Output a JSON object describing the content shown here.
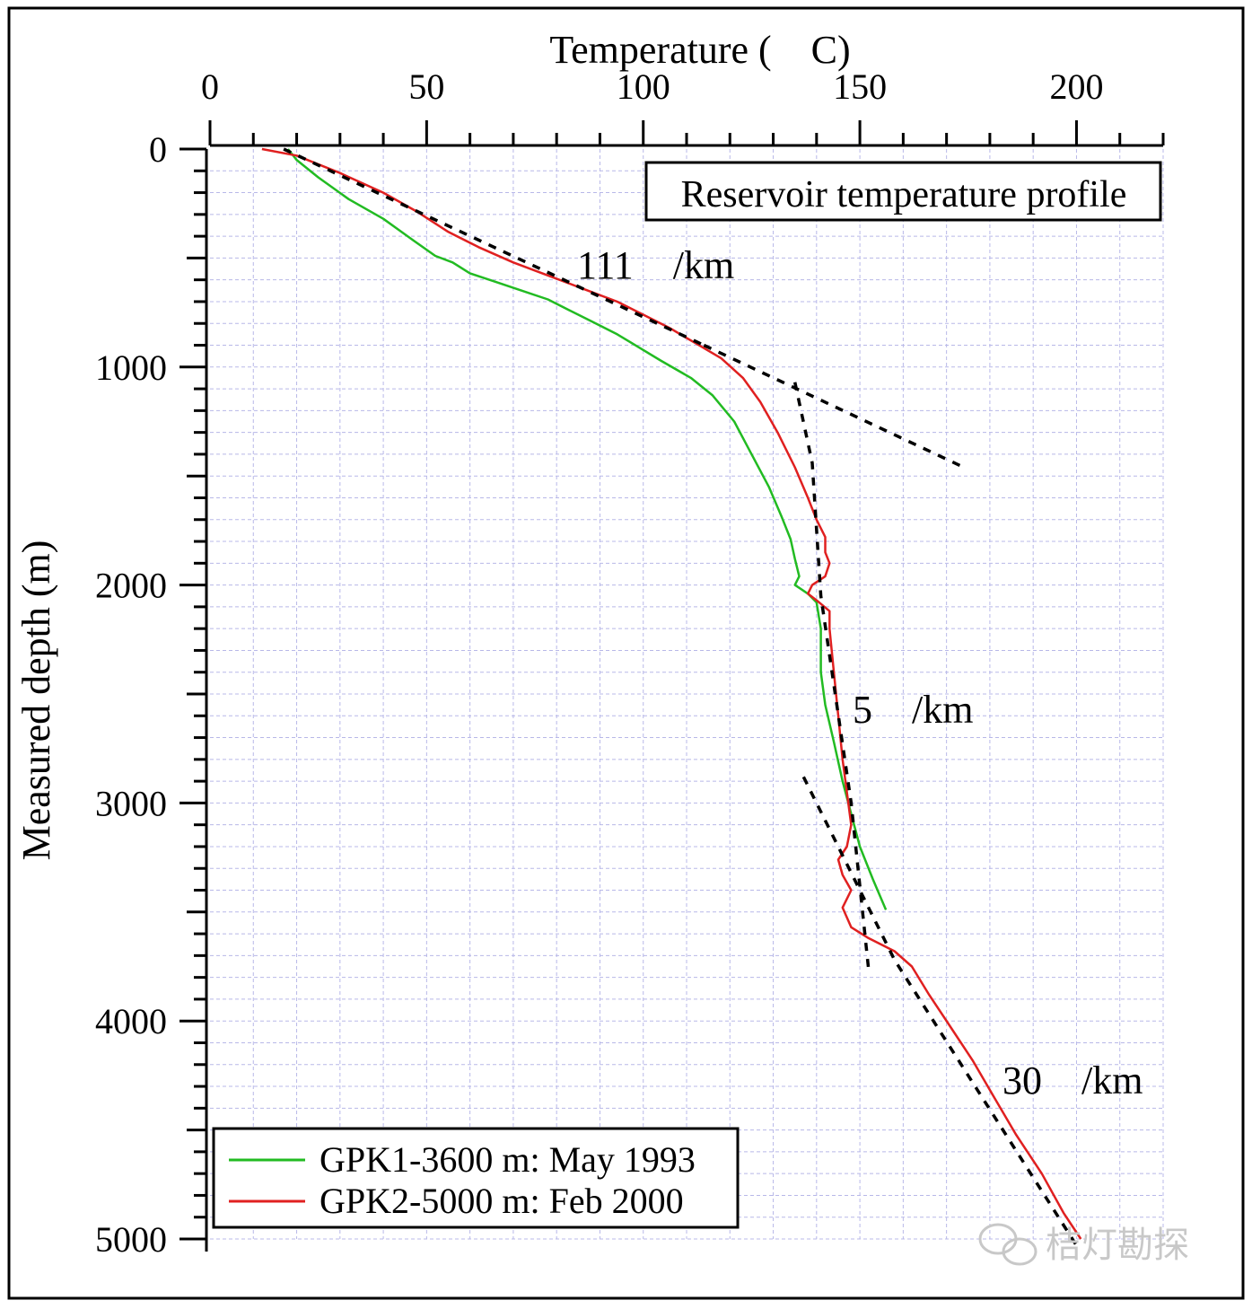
{
  "chart_data": {
    "type": "line",
    "title": "Reservoir temperature profile",
    "xlabel": "Temperature (    C)",
    "ylabel": "Measured depth (m)",
    "xlim": [
      0,
      220
    ],
    "ylim": [
      0,
      5000
    ],
    "y_inverted": true,
    "x_axis_position": "top",
    "x_ticks": [
      "0",
      "50",
      "100",
      "150",
      "200"
    ],
    "y_ticks": [
      "0",
      "1000",
      "2000",
      "3000",
      "4000",
      "5000"
    ],
    "grid": true,
    "legend_position": "bottom-left",
    "series": [
      {
        "name": "GPK1-3600 m: May 1993",
        "color": "#22bb22",
        "points": [
          [
            18,
            0
          ],
          [
            20,
            50
          ],
          [
            25,
            130
          ],
          [
            32,
            230
          ],
          [
            40,
            320
          ],
          [
            47,
            420
          ],
          [
            52,
            490
          ],
          [
            56,
            520
          ],
          [
            60,
            570
          ],
          [
            66,
            610
          ],
          [
            72,
            650
          ],
          [
            78,
            690
          ],
          [
            83,
            740
          ],
          [
            88,
            790
          ],
          [
            94,
            850
          ],
          [
            99,
            910
          ],
          [
            104,
            970
          ],
          [
            111,
            1050
          ],
          [
            116,
            1130
          ],
          [
            121,
            1250
          ],
          [
            125,
            1400
          ],
          [
            129,
            1550
          ],
          [
            132,
            1690
          ],
          [
            134,
            1790
          ],
          [
            135,
            1880
          ],
          [
            136,
            1960
          ],
          [
            135,
            2000
          ],
          [
            138,
            2040
          ],
          [
            140,
            2080
          ],
          [
            141,
            2200
          ],
          [
            141,
            2400
          ],
          [
            142,
            2550
          ],
          [
            144,
            2720
          ],
          [
            146,
            2900
          ],
          [
            148,
            3050
          ],
          [
            150,
            3200
          ],
          [
            153,
            3350
          ],
          [
            156,
            3490
          ]
        ]
      },
      {
        "name": "GPK2-5000 m: Feb 2000",
        "color": "#e02020",
        "points": [
          [
            12,
            0
          ],
          [
            20,
            30
          ],
          [
            30,
            110
          ],
          [
            40,
            200
          ],
          [
            48,
            290
          ],
          [
            55,
            380
          ],
          [
            62,
            450
          ],
          [
            70,
            520
          ],
          [
            78,
            580
          ],
          [
            86,
            640
          ],
          [
            94,
            700
          ],
          [
            100,
            760
          ],
          [
            106,
            820
          ],
          [
            112,
            890
          ],
          [
            118,
            960
          ],
          [
            123,
            1050
          ],
          [
            127,
            1160
          ],
          [
            131,
            1300
          ],
          [
            135,
            1460
          ],
          [
            138,
            1600
          ],
          [
            140,
            1700
          ],
          [
            142,
            1780
          ],
          [
            142,
            1850
          ],
          [
            143,
            1900
          ],
          [
            142,
            1960
          ],
          [
            139,
            2000
          ],
          [
            138,
            2040
          ],
          [
            140,
            2070
          ],
          [
            143,
            2120
          ],
          [
            143,
            2200
          ],
          [
            144,
            2400
          ],
          [
            145,
            2600
          ],
          [
            146,
            2800
          ],
          [
            147,
            2950
          ],
          [
            148,
            3100
          ],
          [
            147,
            3200
          ],
          [
            145,
            3260
          ],
          [
            146,
            3330
          ],
          [
            148,
            3400
          ],
          [
            146,
            3480
          ],
          [
            148,
            3570
          ],
          [
            152,
            3620
          ],
          [
            158,
            3680
          ],
          [
            162,
            3750
          ],
          [
            166,
            3880
          ],
          [
            171,
            4030
          ],
          [
            176,
            4180
          ],
          [
            181,
            4350
          ],
          [
            186,
            4520
          ],
          [
            192,
            4700
          ],
          [
            197,
            4880
          ],
          [
            201,
            5000
          ]
        ]
      }
    ],
    "trend_lines": [
      {
        "points": [
          [
            17,
            0
          ],
          [
            114,
            900
          ]
        ]
      },
      {
        "points": [
          [
            114,
            900
          ],
          [
            174,
            1460
          ]
        ]
      },
      {
        "points": [
          [
            135,
            1070
          ],
          [
            139,
            1440
          ],
          [
            141,
            2050
          ],
          [
            148,
            3000
          ],
          [
            152,
            3760
          ]
        ]
      },
      {
        "points": [
          [
            137,
            2880
          ],
          [
            158,
            3720
          ],
          [
            200,
            5030
          ]
        ]
      }
    ],
    "annotations": [
      {
        "text": "111    /km"
      },
      {
        "text": "5    /km"
      },
      {
        "text": "30    /km"
      }
    ]
  },
  "watermark": "桔灯勘探"
}
